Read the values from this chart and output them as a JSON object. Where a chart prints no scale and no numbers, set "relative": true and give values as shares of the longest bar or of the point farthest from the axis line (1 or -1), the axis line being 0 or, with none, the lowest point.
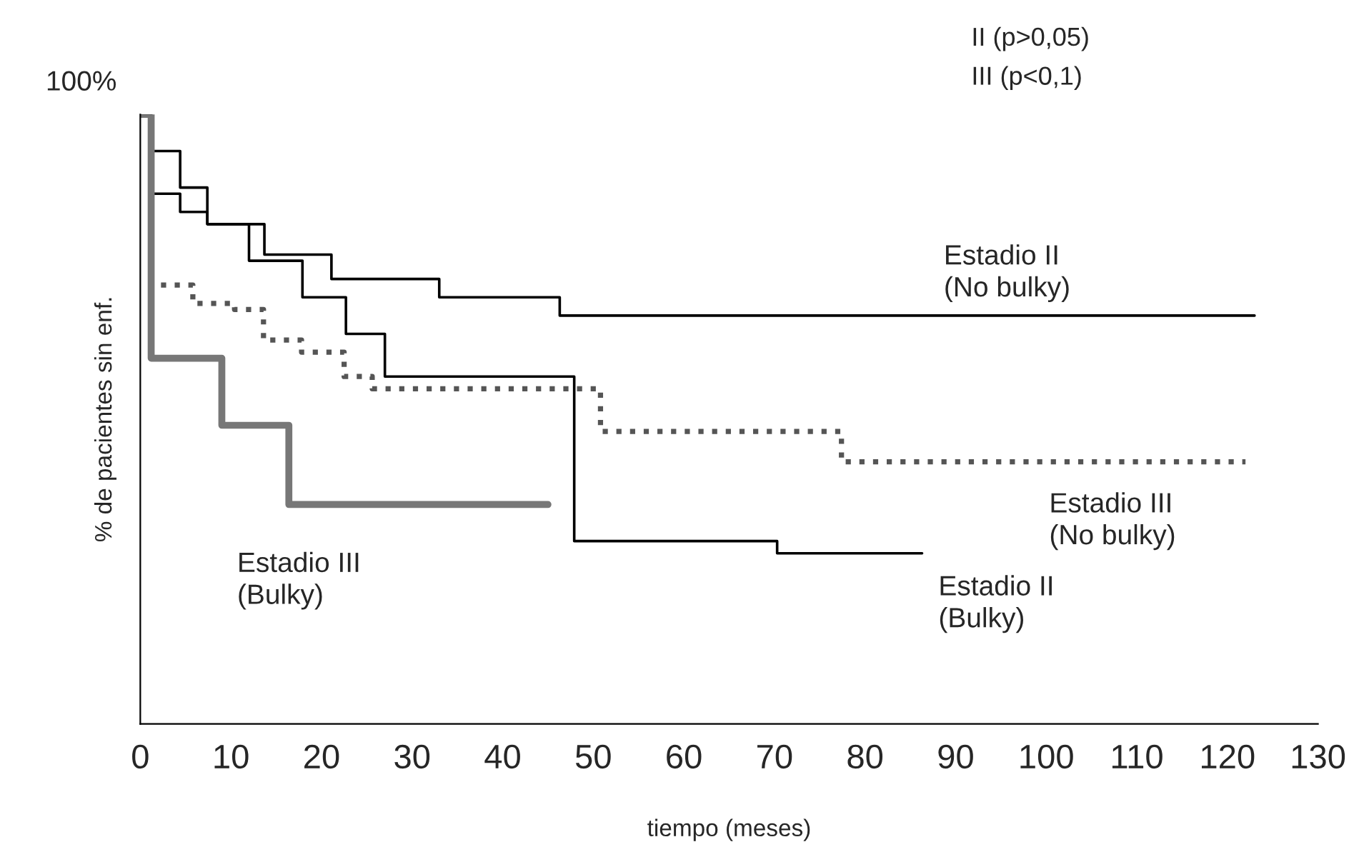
{
  "chart_data": {
    "type": "step",
    "relative": true,
    "xlabel": "tiempo (meses)",
    "ylabel": "% de pacientes sin enf.",
    "xlim": [
      0,
      130
    ],
    "xticks": [
      0,
      10,
      20,
      30,
      40,
      50,
      60,
      70,
      80,
      90,
      100,
      110,
      120,
      130
    ],
    "annotations": [
      "100%",
      "II (p>0,05)",
      "III (p<0,1)"
    ],
    "grid": false,
    "legend": false,
    "series": [
      {
        "name": "Estadio II\n(No bulky)",
        "color": "#000000",
        "line_style": "solid",
        "x": [
          0,
          1.2,
          4.4,
          7.4,
          13.7,
          21.1,
          33,
          46.3,
          123
        ],
        "values": [
          1,
          0.87,
          0.84,
          0.82,
          0.77,
          0.73,
          0.7,
          0.67,
          0.67
        ]
      },
      {
        "name": "Estadio III\n(No bulky)",
        "color": "#555555",
        "line_style": "dotted",
        "x": [
          0,
          1.2,
          5.8,
          10.4,
          13.6,
          17.8,
          22.5,
          25.6,
          50.8,
          77.4,
          122
        ],
        "values": [
          1,
          0.72,
          0.69,
          0.68,
          0.63,
          0.61,
          0.57,
          0.55,
          0.48,
          0.43,
          0.43
        ]
      },
      {
        "name": "Estadio II\n(Bulky)",
        "color": "#000000",
        "line_style": "solid",
        "x": [
          0,
          1.2,
          4.4,
          7.4,
          12,
          17.9,
          22.7,
          27,
          47.9,
          70.3,
          86.3
        ],
        "values": [
          1,
          0.94,
          0.88,
          0.82,
          0.76,
          0.7,
          0.64,
          0.57,
          0.3,
          0.28,
          0.28
        ]
      },
      {
        "name": "Estadio III\n(Bulky)",
        "color": "#777777",
        "line_style": "solid",
        "x": [
          0,
          1.2,
          9.0,
          16.4,
          45
        ],
        "values": [
          1,
          0.6,
          0.49,
          0.36,
          0.36
        ]
      }
    ]
  }
}
